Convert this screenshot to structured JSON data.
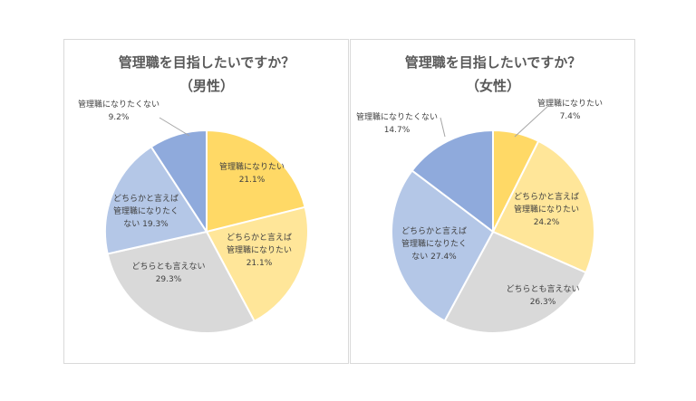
{
  "chart_data": [
    {
      "type": "pie",
      "title_lines": [
        "管理職を目指したいですか？",
        "（男性）"
      ],
      "categories": [
        "管理職になりたい",
        "どちらかと言えば管理職になりたい",
        "どちらとも言えない",
        "どちらかと言えば管理職になりたくない",
        "管理職になりたくない"
      ],
      "values": [
        21.1,
        21.1,
        29.3,
        19.3,
        9.2
      ],
      "unit": "%",
      "colors": [
        "#FFD966",
        "#FFE699",
        "#D9D9D9",
        "#B4C7E7",
        "#8FAADC"
      ],
      "data_labels": [
        [
          "管理職になりたい",
          "21.1%"
        ],
        [
          "どちらかと言えば",
          "管理職になりたい",
          "21.1%"
        ],
        [
          "どちらとも言えない",
          "29.3%"
        ],
        [
          "どちらかと言えば",
          "管理職になりたく",
          "ない 19.3%"
        ],
        [
          "管理職になりたくない",
          "9.2%"
        ]
      ]
    },
    {
      "type": "pie",
      "title_lines": [
        "管理職を目指したいですか？",
        "（女性）"
      ],
      "categories": [
        "管理職になりたい",
        "どちらかと言えば管理職になりたい",
        "どちらとも言えない",
        "どちらかと言えば管理職になりたくない",
        "管理職になりたくない"
      ],
      "values": [
        7.4,
        24.2,
        26.3,
        27.4,
        14.7
      ],
      "unit": "%",
      "colors": [
        "#FFD966",
        "#FFE699",
        "#D9D9D9",
        "#B4C7E7",
        "#8FAADC"
      ],
      "data_labels": [
        [
          "管理職になりたい",
          "7.4%"
        ],
        [
          "どちらかと言えば",
          "管理職になりたい",
          "24.2%"
        ],
        [
          "どちらとも言えない",
          "26.3%"
        ],
        [
          "どちらかと言えば",
          "管理職になりたく",
          "ない 27.4%"
        ],
        [
          "管理職になりたくない",
          "14.7%"
        ]
      ]
    }
  ]
}
